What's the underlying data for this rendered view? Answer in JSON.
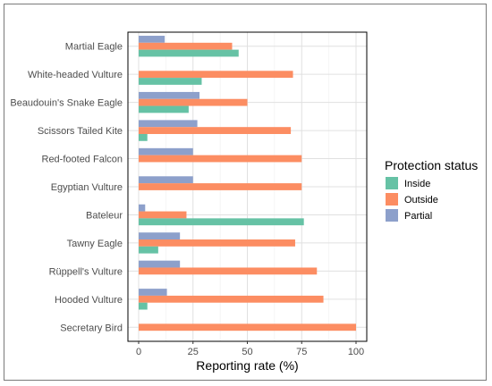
{
  "chart_data": {
    "type": "bar",
    "orientation": "horizontal",
    "categories": [
      "Martial Eagle",
      "White-headed Vulture",
      "Beaudouin's Snake Eagle",
      "Scissors Tailed Kite",
      "Red-footed Falcon",
      "Egyptian Vulture",
      "Bateleur",
      "Tawny Eagle",
      "Rüppell's Vulture",
      "Hooded Vulture",
      "Secretary Bird"
    ],
    "series": [
      {
        "name": "Inside",
        "color": "#66c2a5",
        "values": [
          46,
          29,
          23,
          4,
          0,
          0,
          76,
          9,
          0,
          4,
          0
        ]
      },
      {
        "name": "Outside",
        "color": "#fc8d62",
        "values": [
          43,
          71,
          50,
          70,
          75,
          75,
          22,
          72,
          82,
          85,
          100
        ]
      },
      {
        "name": "Partial",
        "color": "#8da0cb",
        "values": [
          12,
          0,
          28,
          27,
          25,
          25,
          3,
          19,
          19,
          13,
          0
        ]
      }
    ],
    "xlabel": "Reporting rate (%)",
    "ylabel": "",
    "title": "",
    "xlim": [
      0,
      100
    ],
    "xticks": [
      0,
      25,
      50,
      75,
      100
    ],
    "grid": true,
    "legend": {
      "title": "Protection status",
      "placement": "right"
    }
  }
}
